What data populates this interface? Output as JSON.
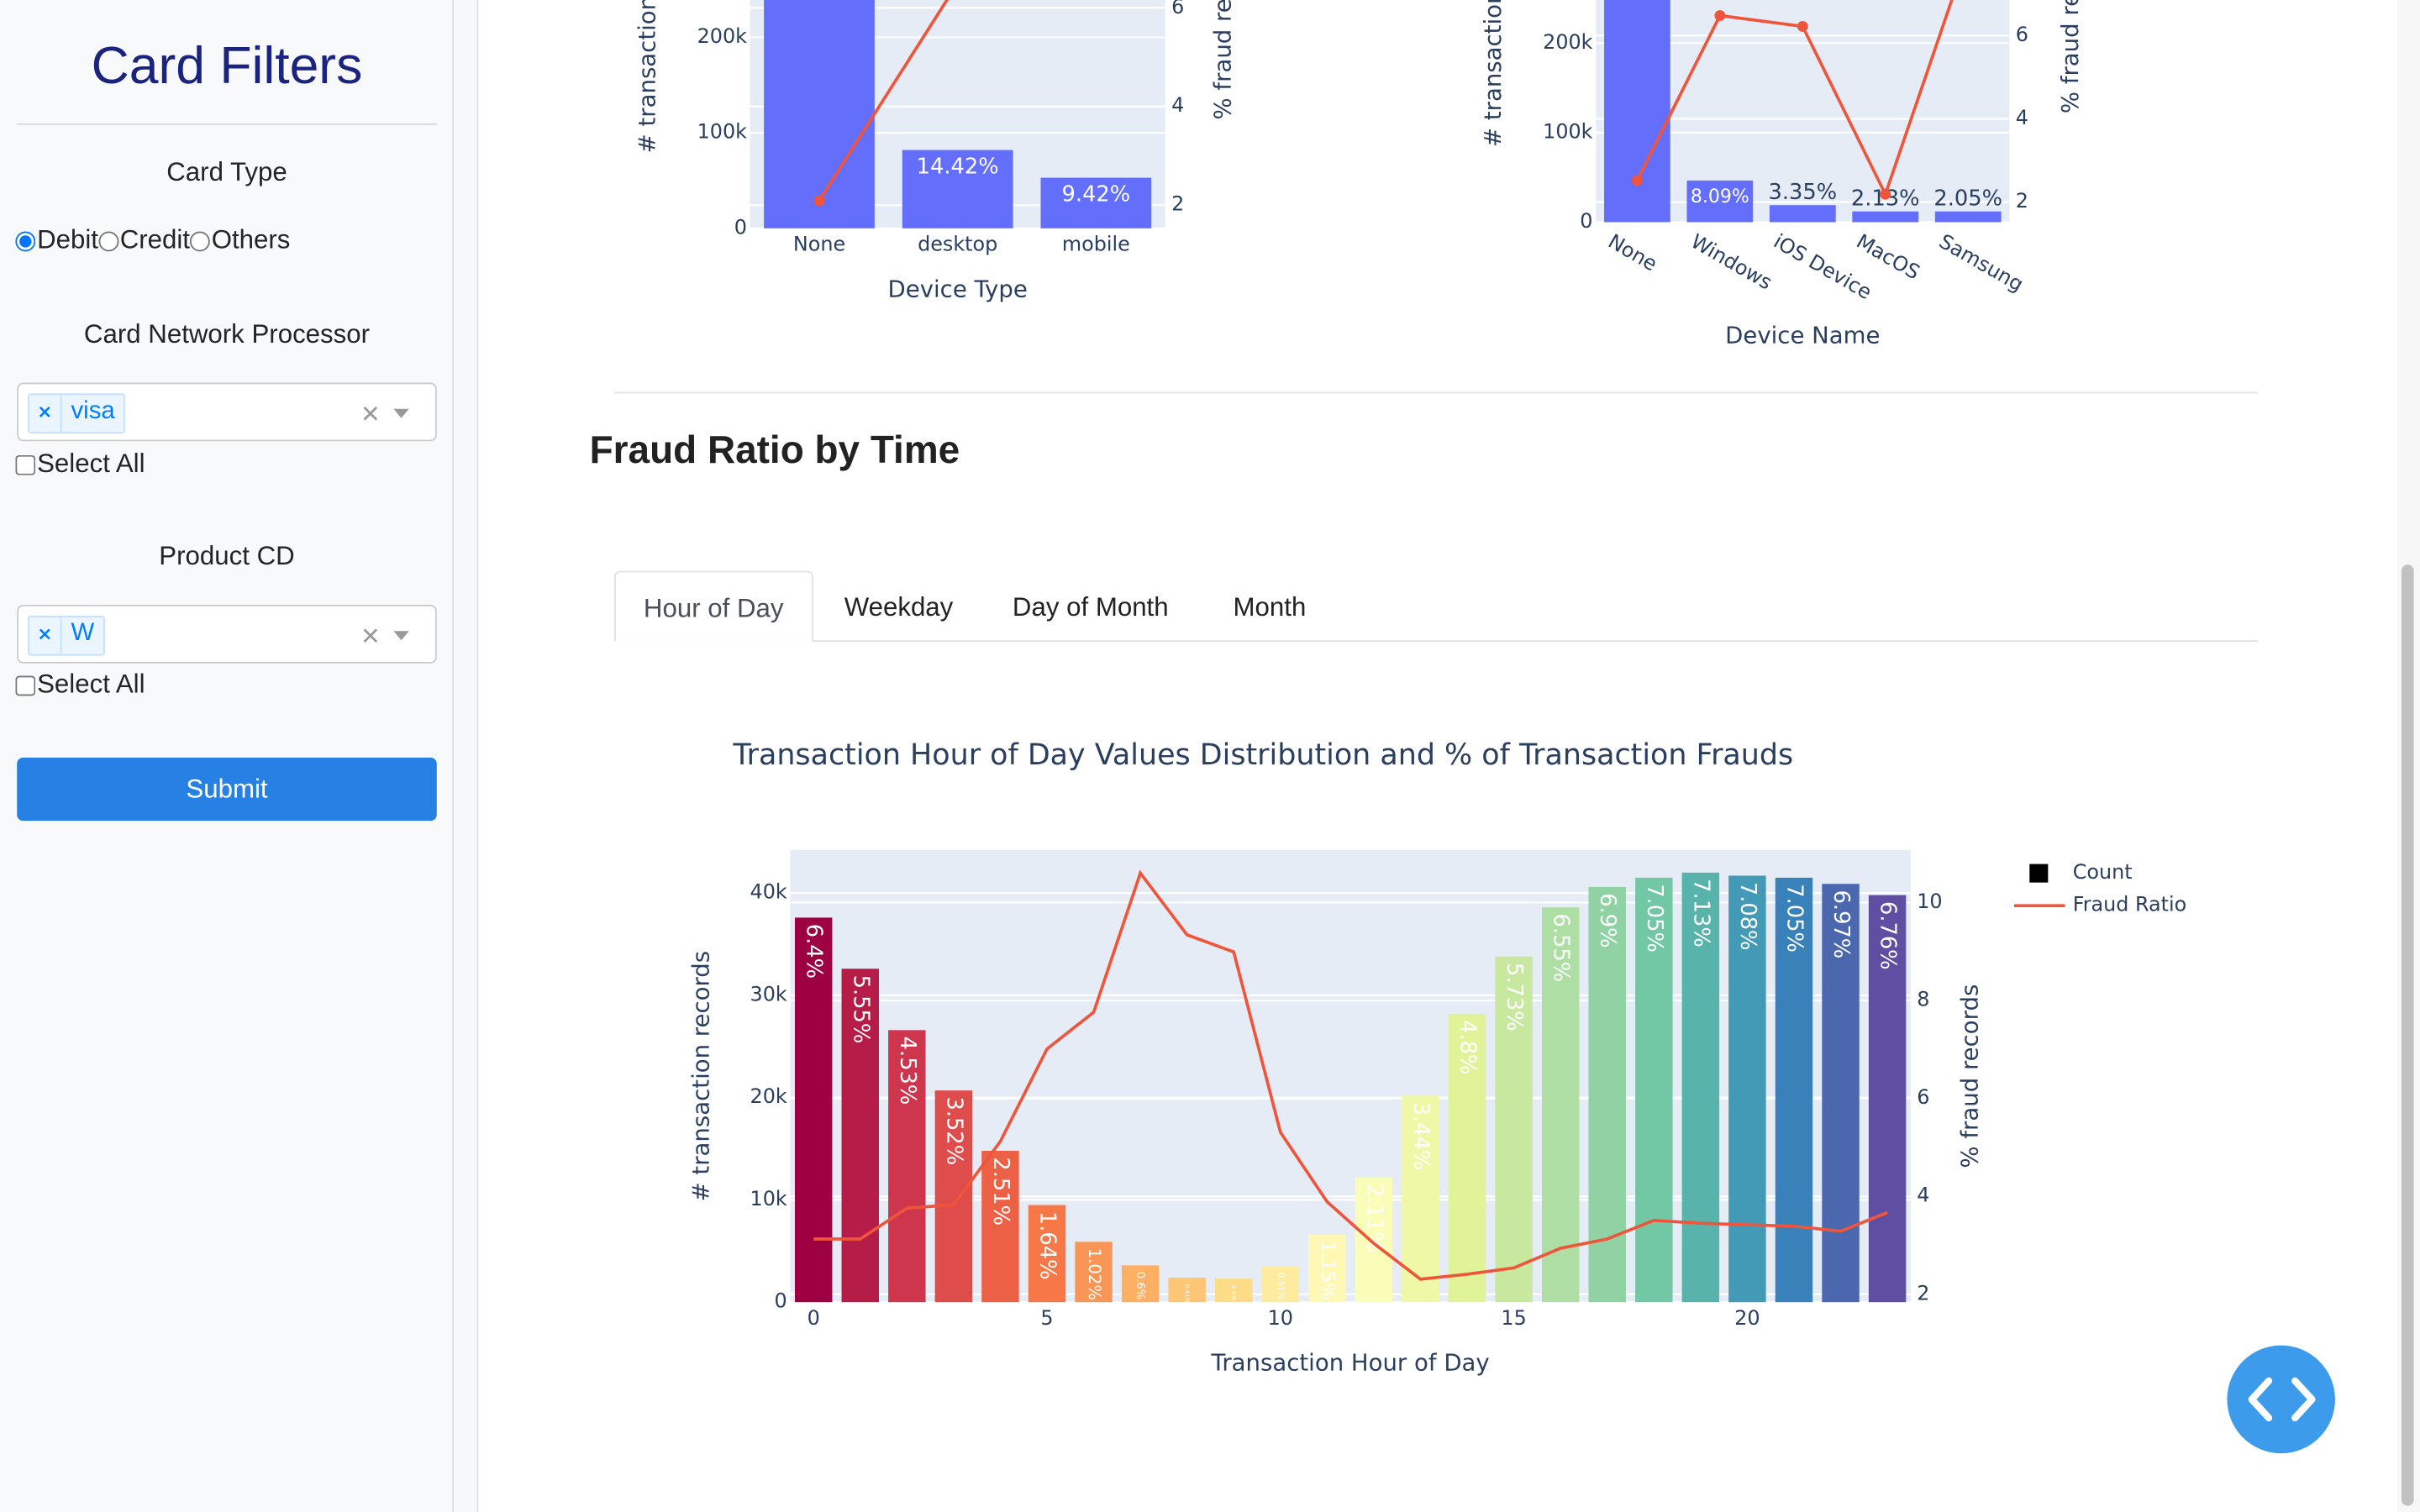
{
  "sidebar": {
    "title": "Card Filters",
    "card_type": {
      "label": "Card Type",
      "options": [
        "Debit",
        "Credit",
        "Others"
      ],
      "selected": "Debit"
    },
    "network": {
      "label": "Card Network Processor",
      "selected": [
        "visa"
      ],
      "select_all": "Select All"
    },
    "product": {
      "label": "Product CD",
      "selected": [
        "W"
      ],
      "select_all": "Select All"
    },
    "submit": "Submit"
  },
  "section": {
    "title": "Fraud Ratio by Time",
    "tabs": [
      "Hour of Day",
      "Weekday",
      "Day of Month",
      "Month"
    ],
    "active_tab": "Hour of Day"
  },
  "chart_data": [
    {
      "type": "bar",
      "x_title": "Device Type",
      "y_title": "# transaction records",
      "y2_title": "% fraud records",
      "categories": [
        "None",
        "desktop",
        "mobile"
      ],
      "grid": true,
      "ylim": [
        0,
        420000
      ],
      "yticks": [
        0,
        {
          "value": 100000,
          "label": "100k"
        },
        {
          "value": 200000,
          "label": "200k"
        }
      ],
      "y2lim": [
        1.53,
        9.66
      ],
      "y2ticks": [
        2,
        4,
        6
      ],
      "series": [
        {
          "type": "bar",
          "color": "#636efa",
          "values": [
            330000,
            82000,
            53000
          ],
          "text_labels": [
            null,
            "14.42%",
            "9.42%"
          ]
        },
        {
          "type": "line",
          "axis": "y2",
          "color": "#ef553b",
          "markers": true,
          "values": [
            2.09,
            6.5,
            8.5
          ]
        }
      ]
    },
    {
      "type": "bar",
      "x_title": "Device Name",
      "y_title": "# transaction records",
      "y2_title": "% fraud records",
      "categories": [
        "None",
        "Windows",
        "iOS Device",
        "MacOS",
        "Samsung"
      ],
      "grid": true,
      "ylim": [
        0,
        448000
      ],
      "yticks": [
        0,
        {
          "value": 100000,
          "label": "100k"
        },
        {
          "value": 200000,
          "label": "200k"
        }
      ],
      "y2lim": [
        1.52,
        11.15
      ],
      "y2ticks": [
        2,
        4,
        6
      ],
      "series": [
        {
          "type": "bar",
          "color": "#636efa",
          "values": [
            320000,
            46500,
            19000,
            12000,
            12000
          ],
          "text_labels": [
            null,
            "8.09%",
            "3.35%",
            "2.13%",
            "2.05%"
          ]
        },
        {
          "type": "line",
          "axis": "y2",
          "color": "#ef553b",
          "markers": true,
          "values": [
            2.52,
            6.48,
            6.22,
            2.19,
            8.0
          ]
        }
      ]
    },
    {
      "type": "bar",
      "title": "Transaction Hour of Day Values Distribution and % of Transaction Frauds",
      "x_title": "Transaction Hour of Day",
      "y_title": "# transaction records",
      "y2_title": "% fraud records",
      "x": [
        0,
        1,
        2,
        3,
        4,
        5,
        6,
        7,
        8,
        9,
        10,
        11,
        12,
        13,
        14,
        15,
        16,
        17,
        18,
        19,
        20,
        21,
        22,
        23
      ],
      "xlim": [
        -0.5,
        23.5
      ],
      "xticks": [
        0,
        5,
        10,
        15,
        20
      ],
      "grid": true,
      "legend": true,
      "ylim": [
        0,
        44200
      ],
      "yticks": [
        0,
        {
          "value": 10000,
          "label": "10k"
        },
        {
          "value": 20000,
          "label": "20k"
        },
        {
          "value": 30000,
          "label": "30k"
        },
        {
          "value": 40000,
          "label": "40k"
        }
      ],
      "y2lim": [
        1.84,
        11.07
      ],
      "y2ticks": [
        2,
        4,
        6,
        8,
        10
      ],
      "colorscale": [
        "#9e0142",
        "#d53e4f",
        "#f46d43",
        "#fdae61",
        "#fee08b",
        "#ffffbf",
        "#e6f598",
        "#abdda4",
        "#66c2a5",
        "#3288bd",
        "#5e4fa2"
      ],
      "series": [
        {
          "name": "Count",
          "type": "bar",
          "color": "#000000",
          "values": [
            37600,
            32600,
            26600,
            20700,
            14800,
            9500,
            5900,
            3600,
            2400,
            2300,
            3500,
            6600,
            12200,
            20200,
            28200,
            33800,
            38600,
            40600,
            41500,
            42000,
            41700,
            41500,
            40900,
            39800
          ],
          "text_labels": [
            "6.4%",
            "5.55%",
            "4.53%",
            "3.52%",
            "2.51%",
            "1.64%",
            "1.02%",
            "0.6%",
            "0.41%",
            "0.4%",
            "0.61%",
            "1.15%",
            "2.11%",
            "3.44%",
            "4.8%",
            "5.73%",
            "6.55%",
            "6.9%",
            "7.05%",
            "7.13%",
            "7.08%",
            "7.05%",
            "6.97%",
            "6.76%"
          ]
        },
        {
          "name": "Fraud Ratio",
          "type": "line",
          "axis": "y2",
          "color": "#ef553b",
          "markers": false,
          "values": [
            3.13,
            3.13,
            3.76,
            3.83,
            5.12,
            7.01,
            7.76,
            10.6,
            9.34,
            8.99,
            5.31,
            3.89,
            3.04,
            2.31,
            2.41,
            2.54,
            2.94,
            3.13,
            3.51,
            3.45,
            3.42,
            3.39,
            3.29,
            3.67
          ]
        }
      ]
    }
  ]
}
